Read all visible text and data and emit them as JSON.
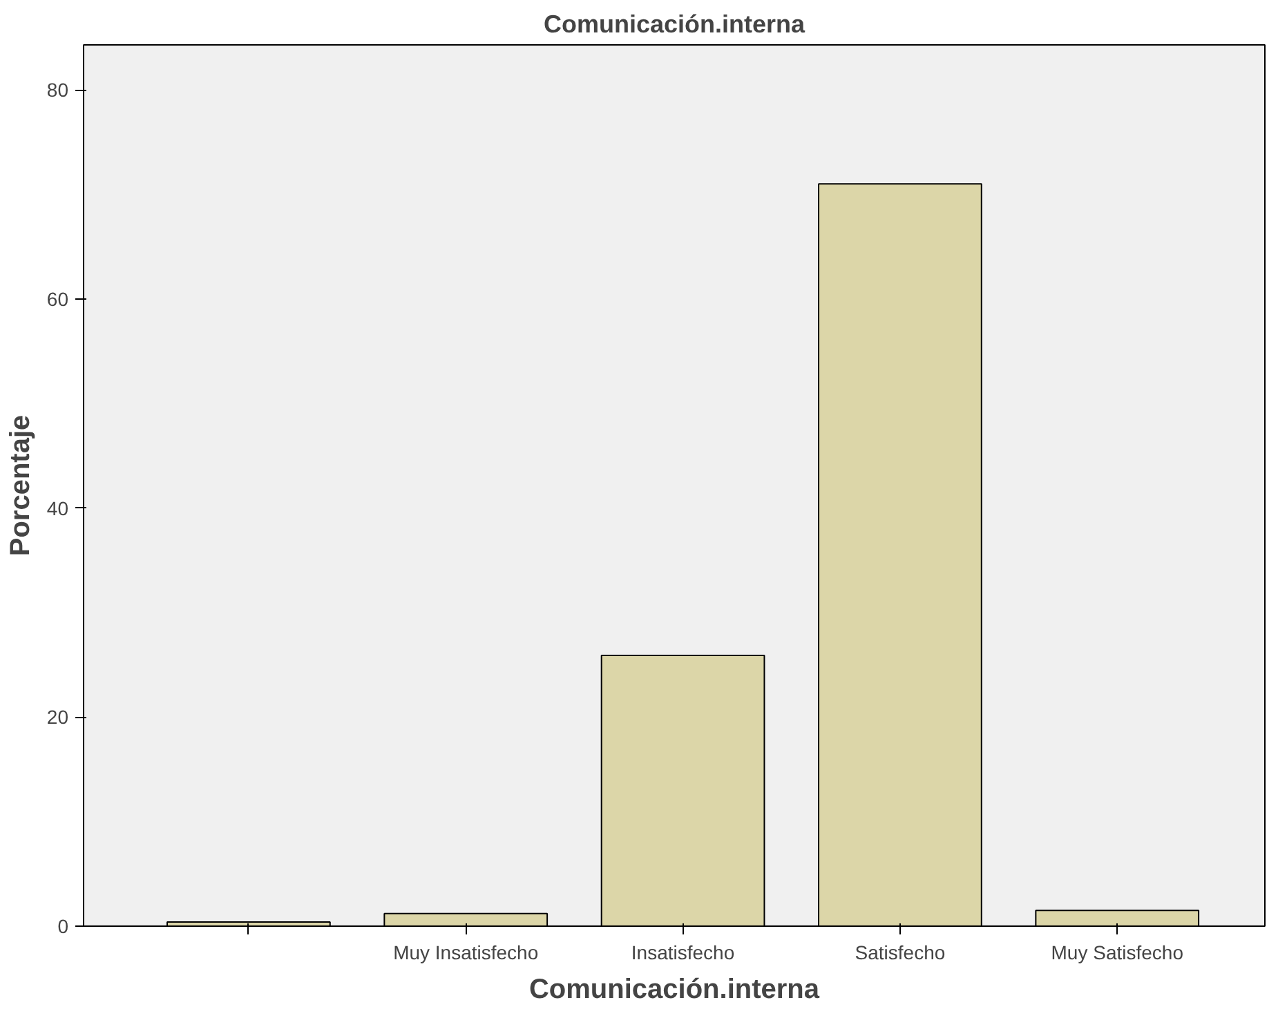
{
  "chart_data": {
    "type": "bar",
    "title": "Comunicación.interna",
    "xlabel": "Comunicación.interna",
    "ylabel": "Porcentaje",
    "categories": [
      null,
      "Muy Insatisfecho",
      "Insatisfecho",
      "Satisfecho",
      "Muy Satisfecho"
    ],
    "values": [
      0.4,
      1.2,
      25.9,
      71.0,
      1.5
    ],
    "color": "#dcd6a8",
    "ylim": [
      0,
      84.3
    ],
    "yticks": [
      0,
      20,
      40,
      60,
      80
    ],
    "grid": false
  }
}
